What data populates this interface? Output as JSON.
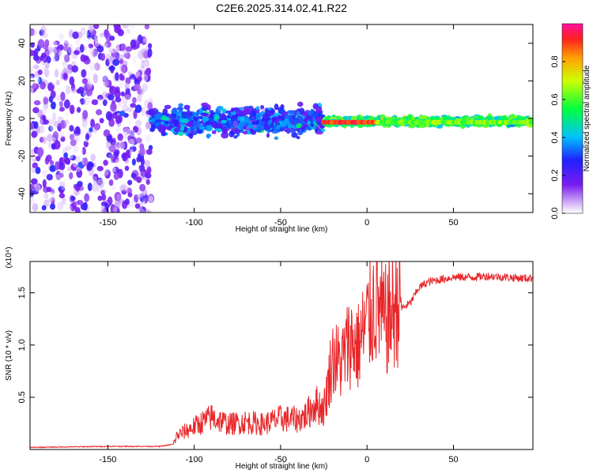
{
  "figure_title": "C2E6.2025.314.02.41.R22",
  "colors": {
    "snr_line": "#e8272a",
    "spectrogram_scatter": "#7a1cf0",
    "frame": "#000000"
  },
  "chart_data": [
    {
      "type": "heatmap",
      "title": "C2E6.2025.314.02.41.R22",
      "xlabel": "Height of straight line (km)",
      "ylabel": "Frequency (Hz)",
      "xlim": [
        -195,
        96
      ],
      "ylim": [
        -50,
        50
      ],
      "xticks": [
        "-150",
        "-100",
        "-50",
        "0",
        "50"
      ],
      "yticks": [
        "-40",
        "-20",
        "0",
        "20",
        "40"
      ],
      "colorbar": {
        "label": "Normalized spectral amplitude",
        "range": [
          0,
          1
        ],
        "ticks": [
          "0.0",
          "0.2",
          "0.4",
          "0.6",
          "0.8"
        ],
        "colormap": "rainbow"
      },
      "description_regions": [
        {
          "x_range": [
            -195,
            -125
          ],
          "freq_spread": 50,
          "amplitude": 0.1
        },
        {
          "x_range": [
            -125,
            -25
          ],
          "freq_spread": 10,
          "amplitude": 0.3
        },
        {
          "x_range": [
            -25,
            96
          ],
          "freq_spread": 3,
          "amplitude": 0.55
        }
      ]
    },
    {
      "type": "line",
      "xlabel": "Height of straight line (km)",
      "ylabel": "SNR (10 * v/v)",
      "y_scale_note": "(x10⁴)",
      "xlim": [
        -195,
        96
      ],
      "ylim": [
        0,
        1.8
      ],
      "xticks": [
        "-150",
        "-100",
        "-50",
        "0",
        "50"
      ],
      "yticks": [
        "0.5",
        "1.0",
        "1.5"
      ],
      "series": [
        {
          "name": "SNR",
          "x": [
            -195,
            -150,
            -120,
            -112,
            -110,
            -100,
            -90,
            -80,
            -70,
            -60,
            -50,
            -40,
            -35,
            -30,
            -25,
            -20,
            -15,
            -10,
            -5,
            0,
            5,
            10,
            15,
            20,
            25,
            30,
            35,
            40,
            50,
            60,
            70,
            80,
            90,
            96
          ],
          "y": [
            0.02,
            0.03,
            0.03,
            0.05,
            0.12,
            0.2,
            0.28,
            0.22,
            0.24,
            0.22,
            0.27,
            0.26,
            0.3,
            0.4,
            0.35,
            0.8,
            0.75,
            0.95,
            0.9,
            1.1,
            1.3,
            1.1,
            1.2,
            1.35,
            1.4,
            1.55,
            1.6,
            1.62,
            1.65,
            1.65,
            1.66,
            1.65,
            1.64,
            1.64
          ]
        }
      ]
    }
  ]
}
